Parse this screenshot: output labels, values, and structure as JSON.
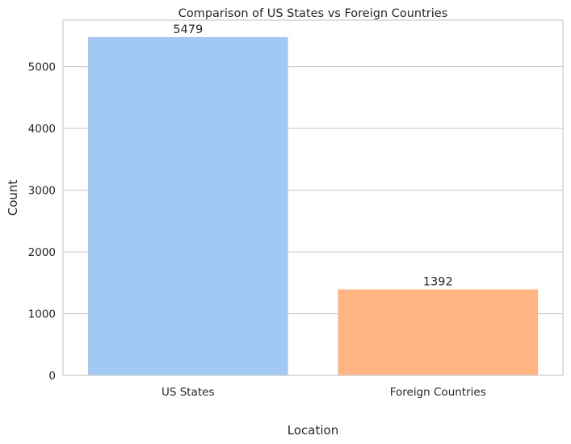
{
  "chart_data": {
    "type": "bar",
    "title": "Comparison of US States vs Foreign Countries",
    "xlabel": "Location",
    "ylabel": "Count",
    "categories": [
      "US States",
      "Foreign Countries"
    ],
    "values": [
      5479,
      1392
    ],
    "data_labels": [
      "5479",
      "1392"
    ],
    "ylim": [
      0,
      5753
    ],
    "yticks": [
      0,
      1000,
      2000,
      3000,
      4000,
      5000
    ],
    "grid": "horizontal",
    "legend": "none",
    "colors": [
      "#a1c9f4",
      "#ffb482"
    ]
  }
}
